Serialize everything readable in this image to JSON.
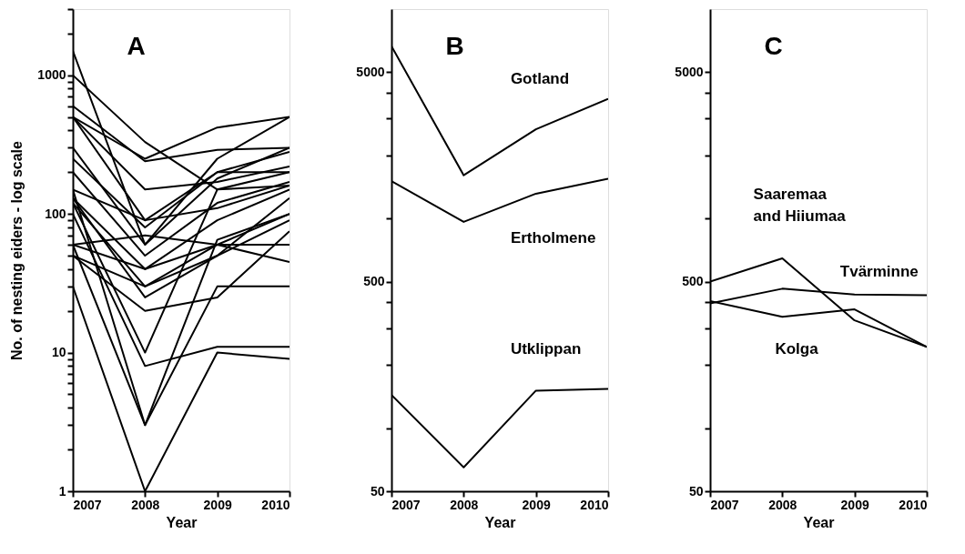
{
  "chart_data": [
    {
      "type": "line",
      "title": "A",
      "xlabel": "Year",
      "ylabel": "No. of nesting eiders - log scale",
      "log": true,
      "grid": false,
      "legend": false,
      "marker": "none",
      "line_style": "solid",
      "x": [
        2007,
        2008,
        2009,
        2010
      ],
      "xlim": [
        2007,
        2010
      ],
      "xticks": [
        2007,
        2008,
        2009,
        2010
      ],
      "ylim": [
        1,
        3000
      ],
      "yticks": [
        1,
        {
          "value": 2,
          "label": null
        },
        {
          "value": 3,
          "label": null
        },
        {
          "value": 4,
          "label": null
        },
        {
          "value": 5,
          "label": null
        },
        {
          "value": 6,
          "label": null
        },
        {
          "value": 7,
          "label": null
        },
        {
          "value": 8,
          "label": null
        },
        {
          "value": 9,
          "label": null
        },
        10,
        {
          "value": 20,
          "label": null
        },
        {
          "value": 30,
          "label": null
        },
        {
          "value": 40,
          "label": null
        },
        {
          "value": 50,
          "label": null
        },
        {
          "value": 60,
          "label": null
        },
        {
          "value": 70,
          "label": null
        },
        {
          "value": 80,
          "label": null
        },
        {
          "value": 90,
          "label": null
        },
        100,
        {
          "value": 200,
          "label": null
        },
        {
          "value": 300,
          "label": null
        },
        {
          "value": 400,
          "label": null
        },
        {
          "value": 500,
          "label": null
        },
        {
          "value": 600,
          "label": null
        },
        {
          "value": 700,
          "label": null
        },
        {
          "value": 800,
          "label": null
        },
        {
          "value": 900,
          "label": null
        },
        1000,
        {
          "value": 2000,
          "label": null
        },
        {
          "value": 3000,
          "label": null
        }
      ],
      "series": [
        {
          "color": "#000000",
          "values": [
            1000,
            330,
            150,
            160
          ]
        },
        {
          "color": "#000000",
          "values": [
            1500,
            60,
            250,
            500
          ]
        },
        {
          "color": "#000000",
          "values": [
            600,
            240,
            290,
            300
          ]
        },
        {
          "color": "#000000",
          "values": [
            500,
            250,
            420,
            500
          ]
        },
        {
          "color": "#000000",
          "values": [
            500,
            150,
            170,
            220
          ]
        },
        {
          "color": "#000000",
          "values": [
            500,
            90,
            200,
            200
          ]
        },
        {
          "color": "#000000",
          "values": [
            300,
            60,
            180,
            300
          ]
        },
        {
          "color": "#000000",
          "values": [
            250,
            80,
            200,
            280
          ]
        },
        {
          "color": "#000000",
          "values": [
            200,
            50,
            120,
            170
          ]
        },
        {
          "color": "#000000",
          "values": [
            150,
            90,
            110,
            160
          ]
        },
        {
          "color": "#000000",
          "values": [
            130,
            40,
            90,
            150
          ]
        },
        {
          "color": "#000000",
          "values": [
            120,
            30,
            60,
            100
          ]
        },
        {
          "color": "#000000",
          "values": [
            60,
            70,
            60,
            60
          ]
        },
        {
          "color": "#000000",
          "values": [
            60,
            40,
            60,
            45
          ]
        },
        {
          "color": "#000000",
          "values": [
            50,
            30,
            50,
            90
          ]
        },
        {
          "color": "#000000",
          "values": [
            130,
            25,
            50,
            130
          ]
        },
        {
          "color": "#000000",
          "values": [
            50,
            20,
            25,
            75
          ]
        },
        {
          "color": "#000000",
          "values": [
            120,
            10,
            150,
            200
          ]
        },
        {
          "color": "#000000",
          "values": [
            100,
            8,
            11,
            11
          ]
        },
        {
          "color": "#000000",
          "values": [
            60,
            3,
            30,
            30
          ]
        },
        {
          "color": "#000000",
          "values": [
            150,
            3,
            65,
            100
          ]
        },
        {
          "color": "#000000",
          "values": [
            30,
            1,
            10,
            9
          ]
        }
      ]
    },
    {
      "type": "line",
      "title": "B",
      "xlabel": "Year",
      "log": true,
      "grid": false,
      "legend": false,
      "marker": "none",
      "line_style": "solid",
      "x": [
        2007,
        2008,
        2009,
        2010
      ],
      "xlim": [
        2007,
        2010
      ],
      "xticks": [
        2007,
        2008,
        2009,
        2010
      ],
      "ylim": [
        50,
        10000
      ],
      "yticks": [
        50,
        {
          "value": 100,
          "label": null
        },
        {
          "value": 200,
          "label": null
        },
        {
          "value": 300,
          "label": null
        },
        {
          "value": 400,
          "label": null
        },
        500,
        {
          "value": 1000,
          "label": null
        },
        {
          "value": 2000,
          "label": null
        },
        {
          "value": 3000,
          "label": null
        },
        {
          "value": 4000,
          "label": null
        },
        5000
      ],
      "series": [
        {
          "name": "Gotland",
          "color": "#000000",
          "values": [
            6650,
            1610,
            2670,
            3730
          ]
        },
        {
          "name": "Ertholmene",
          "color": "#000000",
          "values": [
            1510,
            965,
            1315,
            1550
          ]
        },
        {
          "name": "Utklippan",
          "color": "#000000",
          "values": [
            144,
            65,
            151,
            154
          ]
        }
      ]
    },
    {
      "type": "line",
      "title": "C",
      "xlabel": "Year",
      "log": true,
      "grid": false,
      "legend": false,
      "marker": "none",
      "line_style": "solid",
      "x": [
        2007,
        2008,
        2009,
        2010
      ],
      "xlim": [
        2007,
        2010
      ],
      "xticks": [
        2007,
        2008,
        2009,
        2010
      ],
      "ylim": [
        50,
        10000
      ],
      "yticks": [
        50,
        {
          "value": 100,
          "label": null
        },
        {
          "value": 200,
          "label": null
        },
        {
          "value": 300,
          "label": null
        },
        {
          "value": 400,
          "label": null
        },
        500,
        {
          "value": 1000,
          "label": null
        },
        {
          "value": 2000,
          "label": null
        },
        {
          "value": 3000,
          "label": null
        },
        {
          "value": 4000,
          "label": null
        },
        5000
      ],
      "series": [
        {
          "name": "Saaremaa\nand Hiiumaa",
          "color": "#000000",
          "values": [
            500,
            646,
            327,
            244
          ]
        },
        {
          "name": "Tvärminne",
          "color": "#000000",
          "values": [
            394,
            463,
            434,
            431
          ]
        },
        {
          "name": "Kolga",
          "color": "#000000",
          "values": [
            404,
            340,
            369,
            244
          ]
        }
      ]
    }
  ]
}
